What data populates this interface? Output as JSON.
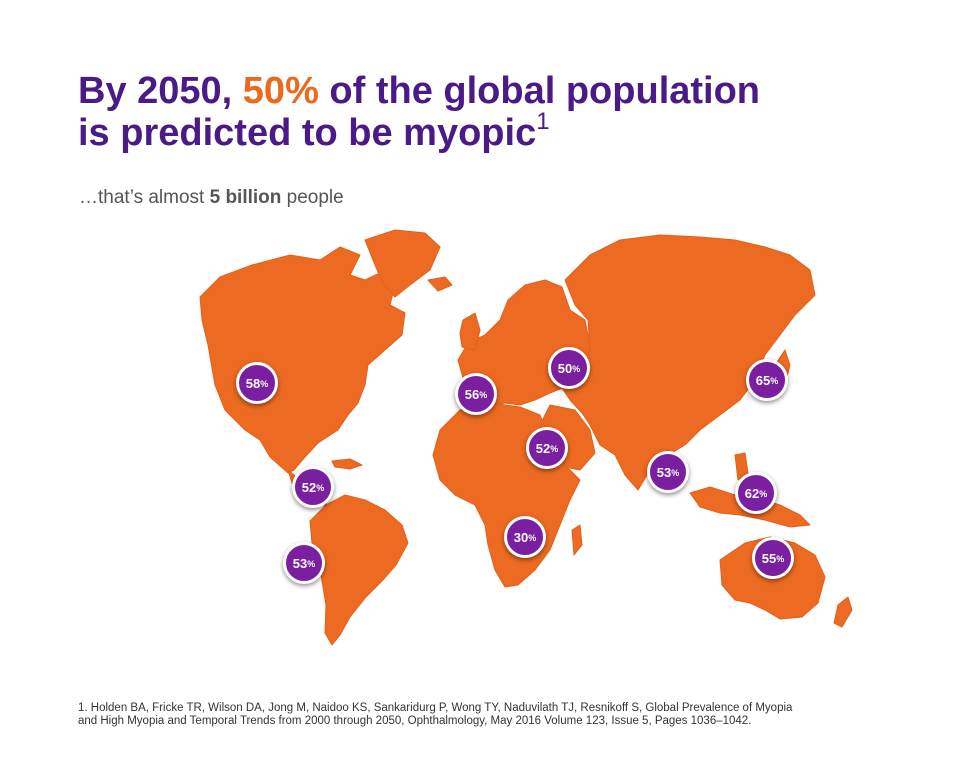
{
  "title": {
    "part1": "By 2050, ",
    "highlight": "50%",
    "part2": " of the global population",
    "line2": "is predicted to be myopic",
    "sup": "1"
  },
  "subtitle": {
    "prefix": "…that’s almost ",
    "bold": "5 billion",
    "suffix": " people"
  },
  "colors": {
    "title": "#4a1a86",
    "highlight": "#ea6a1e",
    "land": "#ec6a21",
    "marker": "#7a1fa0"
  },
  "markers": [
    {
      "region": "north-america",
      "value": "58",
      "unit": "%"
    },
    {
      "region": "central-america",
      "value": "52",
      "unit": "%"
    },
    {
      "region": "south-america",
      "value": "53",
      "unit": "%"
    },
    {
      "region": "western-europe",
      "value": "56",
      "unit": "%"
    },
    {
      "region": "eastern-europe",
      "value": "50",
      "unit": "%"
    },
    {
      "region": "north-africa-middle-east",
      "value": "52",
      "unit": "%"
    },
    {
      "region": "sub-saharan-africa",
      "value": "30",
      "unit": "%"
    },
    {
      "region": "south-asia",
      "value": "53",
      "unit": "%"
    },
    {
      "region": "east-asia",
      "value": "65",
      "unit": "%"
    },
    {
      "region": "southeast-asia",
      "value": "62",
      "unit": "%"
    },
    {
      "region": "australasia",
      "value": "55",
      "unit": "%"
    }
  ],
  "footnote": {
    "line1": "1. Holden BA, Fricke TR, Wilson DA, Jong M, Naidoo KS, Sankaridurg P, Wong TY, Naduvilath TJ, Resnikoff S, Global Prevalence of Myopia",
    "line2": "and High Myopia and Temporal Trends from 2000 through 2050, Ophthalmology, May 2016 Volume 123, Issue 5, Pages 1036–1042."
  }
}
